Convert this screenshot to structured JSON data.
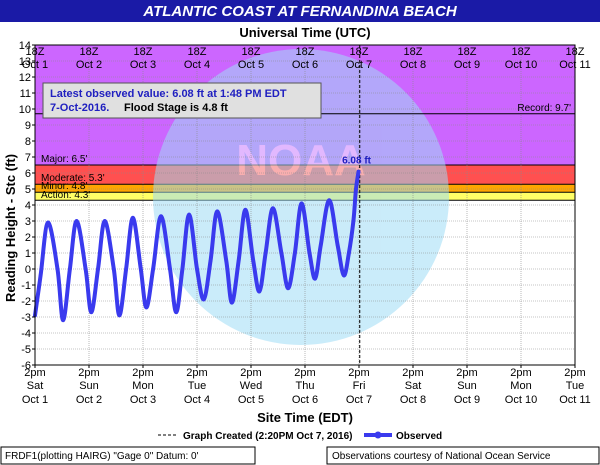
{
  "chart_data": {
    "type": "line",
    "title": "ATLANTIC COAST AT FERNANDINA BEACH",
    "top_axis_title": "Universal Time (UTC)",
    "xlabel": "Site Time (EDT)",
    "ylabel": "Reading Height - Stc (ft)",
    "ylim": [
      -6,
      14
    ],
    "grid": true,
    "y_ticks": [
      "-6",
      "-5",
      "-4",
      "-3",
      "-2",
      "-1",
      "0",
      "1",
      "2",
      "3",
      "4",
      "5",
      "6",
      "7",
      "8",
      "9",
      "10",
      "11",
      "12",
      "13",
      "14"
    ],
    "top_ticks": [
      {
        "time": "18Z",
        "date": "Oct 1"
      },
      {
        "time": "18Z",
        "date": "Oct 2"
      },
      {
        "time": "18Z",
        "date": "Oct 3"
      },
      {
        "time": "18Z",
        "date": "Oct 4"
      },
      {
        "time": "18Z",
        "date": "Oct 5"
      },
      {
        "time": "18Z",
        "date": "Oct 6"
      },
      {
        "time": "18Z",
        "date": "Oct 7"
      },
      {
        "time": "18Z",
        "date": "Oct 8"
      },
      {
        "time": "18Z",
        "date": "Oct 9"
      },
      {
        "time": "18Z",
        "date": "Oct 10"
      },
      {
        "time": "18Z",
        "date": "Oct 11"
      }
    ],
    "bottom_ticks": [
      {
        "time": "2pm",
        "day": "Sat",
        "date": "Oct 1"
      },
      {
        "time": "2pm",
        "day": "Sun",
        "date": "Oct 2"
      },
      {
        "time": "2pm",
        "day": "Mon",
        "date": "Oct 3"
      },
      {
        "time": "2pm",
        "day": "Tue",
        "date": "Oct 4"
      },
      {
        "time": "2pm",
        "day": "Wed",
        "date": "Oct 5"
      },
      {
        "time": "2pm",
        "day": "Thu",
        "date": "Oct 6"
      },
      {
        "time": "2pm",
        "day": "Fri",
        "date": "Oct 7"
      },
      {
        "time": "2pm",
        "day": "Sat",
        "date": "Oct 8"
      },
      {
        "time": "2pm",
        "day": "Sun",
        "date": "Oct 9"
      },
      {
        "time": "2pm",
        "day": "Mon",
        "date": "Oct 10"
      },
      {
        "time": "2pm",
        "day": "Tue",
        "date": "Oct 11"
      }
    ],
    "x_start": "2016-10-01 14:00 EDT",
    "x_end": "2016-10-11 14:00 EDT",
    "graph_created": "2016-10-07 14:20 EDT",
    "flood_categories": [
      {
        "label": "Action: 4.3'",
        "from": 4.3,
        "to": 4.8,
        "color": "#ffff66"
      },
      {
        "label": "Minor: 4.8'",
        "from": 4.8,
        "to": 5.3,
        "color": "#ffa500"
      },
      {
        "label": "Moderate: 5.3'",
        "from": 5.3,
        "to": 6.5,
        "color": "#ff5050"
      },
      {
        "label": "Major: 6.5'",
        "from": 6.5,
        "to": 14,
        "color": "#cc66ff"
      }
    ],
    "record": {
      "label": "Record: 9.7'",
      "value": 9.7
    },
    "latest_label": "6.08 ft",
    "latest_value": 6.08,
    "series": [
      {
        "name": "Observed",
        "color": "#3a3aee",
        "points": [
          [
            "2016-10-01 14:00",
            -2.9
          ],
          [
            "2016-10-01 16:30",
            -0.4
          ],
          [
            "2016-10-01 19:45",
            2.9
          ],
          [
            "2016-10-02 00:00",
            0.0
          ],
          [
            "2016-10-02 02:30",
            -3.2
          ],
          [
            "2016-10-02 05:30",
            0.0
          ],
          [
            "2016-10-02 08:30",
            3.0
          ],
          [
            "2016-10-02 12:30",
            0.0
          ],
          [
            "2016-10-02 15:00",
            -2.7
          ],
          [
            "2016-10-02 18:00",
            0.0
          ],
          [
            "2016-10-02 21:00",
            3.0
          ],
          [
            "2016-10-03 01:00",
            0.0
          ],
          [
            "2016-10-03 03:30",
            -2.9
          ],
          [
            "2016-10-03 06:30",
            0.0
          ],
          [
            "2016-10-03 09:30",
            3.2
          ],
          [
            "2016-10-03 13:00",
            0.0
          ],
          [
            "2016-10-03 15:30",
            -2.4
          ],
          [
            "2016-10-03 18:30",
            0.0
          ],
          [
            "2016-10-03 22:00",
            3.3
          ],
          [
            "2016-10-04 02:00",
            0.0
          ],
          [
            "2016-10-04 04:45",
            -2.7
          ],
          [
            "2016-10-04 07:30",
            0.0
          ],
          [
            "2016-10-04 10:30",
            3.4
          ],
          [
            "2016-10-04 14:00",
            0.0
          ],
          [
            "2016-10-04 17:00",
            -1.9
          ],
          [
            "2016-10-04 20:00",
            0.5
          ],
          [
            "2016-10-04 23:00",
            3.6
          ],
          [
            "2016-10-05 03:00",
            0.5
          ],
          [
            "2016-10-05 05:30",
            -2.1
          ],
          [
            "2016-10-05 08:30",
            0.5
          ],
          [
            "2016-10-05 11:30",
            3.7
          ],
          [
            "2016-10-05 15:00",
            0.5
          ],
          [
            "2016-10-05 17:45",
            -1.4
          ],
          [
            "2016-10-05 20:30",
            1.0
          ],
          [
            "2016-10-05 23:45",
            3.8
          ],
          [
            "2016-10-06 03:30",
            1.0
          ],
          [
            "2016-10-06 06:30",
            -1.2
          ],
          [
            "2016-10-06 09:30",
            1.0
          ],
          [
            "2016-10-06 12:30",
            4.1
          ],
          [
            "2016-10-06 16:00",
            1.0
          ],
          [
            "2016-10-06 18:30",
            -0.6
          ],
          [
            "2016-10-06 21:00",
            1.5
          ],
          [
            "2016-10-07 00:45",
            4.3
          ],
          [
            "2016-10-07 04:30",
            1.5
          ],
          [
            "2016-10-07 07:15",
            -0.4
          ],
          [
            "2016-10-07 09:30",
            1.0
          ],
          [
            "2016-10-07 11:30",
            3.0
          ],
          [
            "2016-10-07 12:40",
            5.0
          ],
          [
            "2016-10-07 13:48",
            6.08
          ]
        ]
      }
    ]
  },
  "legend": {
    "graph_created_label": "Graph Created (2:20PM Oct 7, 2016)",
    "observed_label": "Observed"
  },
  "info_box": {
    "line1": "Latest observed value: 6.08 ft at 1:48 PM EDT",
    "line2a": "7-Oct-2016.",
    "line2b": "Flood Stage is 4.8 ft"
  },
  "footer": {
    "left": "FRDF1(plotting HAIRG) \"Gage 0\" Datum: 0'",
    "right": "Observations courtesy of National Ocean Service"
  },
  "watermark": {
    "text": "NOAA"
  },
  "colors": {
    "title_bg": "#1a1aa6",
    "title_text": "#ffffff",
    "line": "#3a3aee",
    "grid": "#888888",
    "info_text": "#2020c0"
  }
}
